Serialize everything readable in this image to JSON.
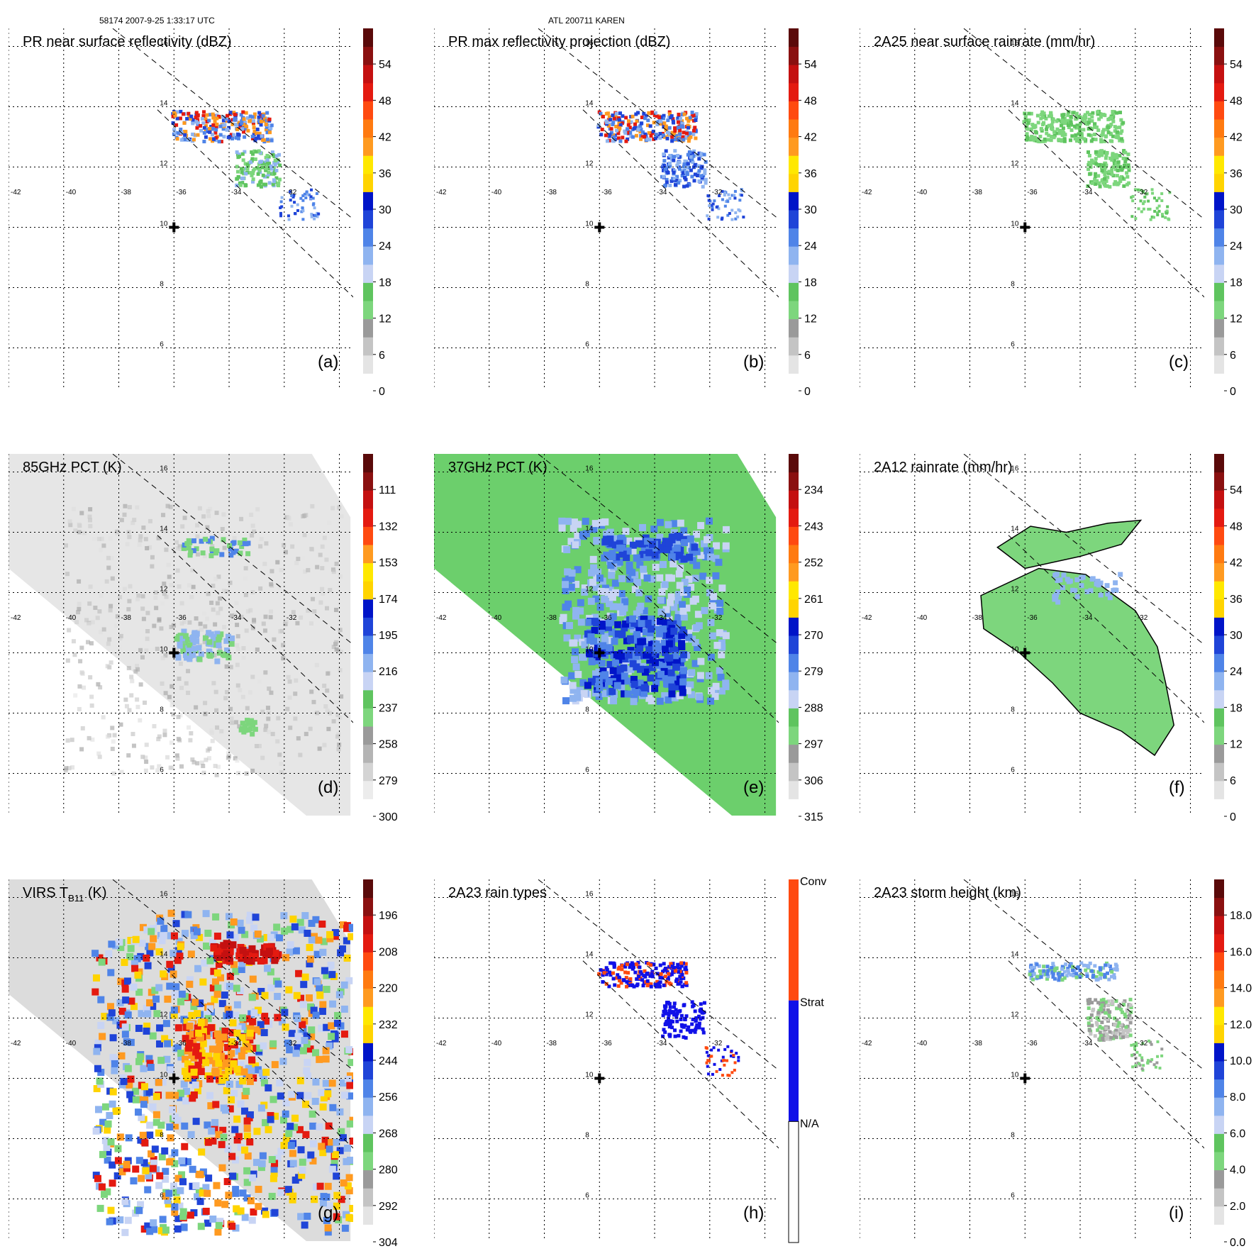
{
  "header": {
    "orbit_time": "58174 2007-9-25 1:33:17 UTC",
    "storm": "ATL 200711 KAREN"
  },
  "map_ticks": {
    "lon_labels": [
      "-42",
      "-40",
      "-38",
      "-36",
      "-34",
      "-32"
    ],
    "lat_labels": [
      "16",
      "14",
      "12",
      "10",
      "8",
      "6"
    ]
  },
  "storm_center": {
    "lon": -36,
    "lat": 10
  },
  "panels": [
    {
      "id": "a",
      "title": "PR near surface reflectivity (dBZ)",
      "tag": "(a)",
      "colorbar": {
        "labels": [
          "54",
          "48",
          "42",
          "36",
          "30",
          "24",
          "18",
          "12",
          "6",
          "0"
        ]
      }
    },
    {
      "id": "b",
      "title": "PR max reflectivity projection (dBZ)",
      "tag": "(b)",
      "colorbar": {
        "labels": [
          "54",
          "48",
          "42",
          "36",
          "30",
          "24",
          "18",
          "12",
          "6",
          "0"
        ]
      }
    },
    {
      "id": "c",
      "title": "2A25 near surface rainrate (mm/hr)",
      "tag": "(c)",
      "colorbar": {
        "labels": [
          "54",
          "48",
          "42",
          "36",
          "30",
          "24",
          "18",
          "12",
          "6",
          "0"
        ]
      }
    },
    {
      "id": "d",
      "title": "85GHz PCT (K)",
      "tag": "(d)",
      "colorbar": {
        "labels": [
          "111",
          "132",
          "153",
          "174",
          "195",
          "216",
          "237",
          "258",
          "279",
          "300"
        ]
      }
    },
    {
      "id": "e",
      "title": "37GHz PCT (K)",
      "tag": "(e)",
      "colorbar": {
        "labels": [
          "234",
          "243",
          "252",
          "261",
          "270",
          "279",
          "288",
          "297",
          "306",
          "315"
        ]
      }
    },
    {
      "id": "f",
      "title": "2A12 rainrate (mm/hr)",
      "tag": "(f)",
      "colorbar": {
        "labels": [
          "54",
          "48",
          "42",
          "36",
          "30",
          "24",
          "18",
          "12",
          "6",
          "0"
        ]
      }
    },
    {
      "id": "g",
      "title": "VIRS T",
      "title_sub": "B11",
      "title_suffix": " (K)",
      "tag": "(g)",
      "colorbar": {
        "labels": [
          "196",
          "208",
          "220",
          "232",
          "244",
          "256",
          "268",
          "280",
          "292",
          "304"
        ]
      }
    },
    {
      "id": "h",
      "title": "2A23 rain types",
      "tag": "(h)",
      "colorbar": {
        "labels": [
          "Conv",
          "Strat",
          "N/A"
        ]
      }
    },
    {
      "id": "i",
      "title": "2A23 storm height (km)",
      "tag": "(i)",
      "colorbar": {
        "labels": [
          "18.0",
          "16.0",
          "14.0",
          "12.0",
          "10.0",
          "8.0",
          "6.0",
          "4.0",
          "2.0",
          "0.0"
        ]
      }
    }
  ],
  "colors": {
    "std_scale": [
      "#ffffff",
      "#e4e4e4",
      "#c4c4c4",
      "#9a9a9a",
      "#7dd67d",
      "#5fc45f",
      "#c8d4f4",
      "#8fb4f0",
      "#4f84e8",
      "#1f44d8",
      "#0014c8",
      "#ffd400",
      "#ffe800",
      "#ff9a20",
      "#ff7a10",
      "#ff4a10",
      "#e41a10",
      "#c41010",
      "#8a1010",
      "#5a0a0a"
    ],
    "pct85_scale": [
      "#ffffff",
      "#ececec",
      "#d4d4d4",
      "#b4b4b4",
      "#9a9a9a",
      "#7dd67d",
      "#5fc45f",
      "#c8d4f4",
      "#8fb4f0",
      "#4f84e8",
      "#1f44d8",
      "#0014c8",
      "#ffd400",
      "#ffe800",
      "#ff9a20",
      "#ff4a10",
      "#e41a10",
      "#c41010",
      "#8a1010",
      "#5a0a0a"
    ],
    "rain_type": {
      "conv": "#ff4a10",
      "strat": "#1010e8",
      "na": "#ffffff"
    },
    "virs_bg": "#dcdcdc"
  }
}
